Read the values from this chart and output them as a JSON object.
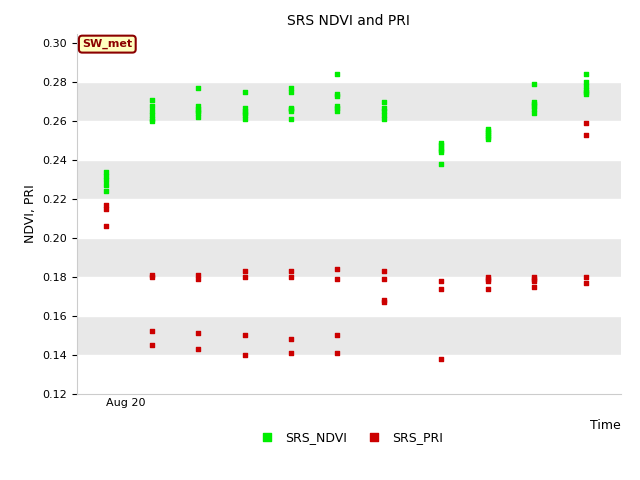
{
  "title": "SRS NDVI and PRI",
  "xlabel": "Time",
  "ylabel": "NDVI, PRI",
  "xlim_label": "Aug 20",
  "ylim": [
    0.12,
    0.305
  ],
  "yticks": [
    0.12,
    0.14,
    0.16,
    0.18,
    0.2,
    0.22,
    0.24,
    0.26,
    0.28,
    0.3
  ],
  "annotation": "SW_met",
  "annotation_color": "#8B0000",
  "annotation_bg": "#FFFFC0",
  "plot_bg": "#ffffff",
  "band_color": "#e8e8e8",
  "ndvi_color": "#00EE00",
  "pri_color": "#CC0000",
  "ndvi_x": [
    2,
    2,
    2,
    2,
    2,
    10,
    10,
    10,
    10,
    10,
    10,
    18,
    18,
    18,
    18,
    18,
    18,
    26,
    26,
    26,
    26,
    26,
    26,
    34,
    34,
    34,
    34,
    34,
    34,
    42,
    42,
    42,
    42,
    42,
    42,
    50,
    50,
    50,
    50,
    50,
    60,
    60,
    60,
    60,
    60,
    60,
    68,
    68,
    68,
    68,
    68,
    68,
    76,
    76,
    76,
    76,
    76,
    76,
    85,
    85,
    85,
    85,
    85,
    85
  ],
  "ndvi_y": [
    0.234,
    0.232,
    0.23,
    0.227,
    0.224,
    0.271,
    0.268,
    0.265,
    0.263,
    0.261,
    0.26,
    0.277,
    0.268,
    0.266,
    0.265,
    0.264,
    0.262,
    0.275,
    0.267,
    0.265,
    0.264,
    0.263,
    0.261,
    0.277,
    0.275,
    0.267,
    0.266,
    0.265,
    0.261,
    0.284,
    0.274,
    0.273,
    0.268,
    0.267,
    0.265,
    0.27,
    0.267,
    0.265,
    0.263,
    0.261,
    0.238,
    0.249,
    0.248,
    0.246,
    0.245,
    0.244,
    0.256,
    0.255,
    0.254,
    0.253,
    0.252,
    0.251,
    0.279,
    0.27,
    0.269,
    0.268,
    0.266,
    0.264,
    0.284,
    0.28,
    0.278,
    0.276,
    0.275,
    0.274
  ],
  "pri_x": [
    2,
    2,
    2,
    10,
    10,
    10,
    10,
    18,
    18,
    18,
    18,
    26,
    26,
    26,
    26,
    34,
    34,
    34,
    34,
    42,
    42,
    42,
    42,
    50,
    50,
    50,
    50,
    60,
    60,
    60,
    68,
    68,
    68,
    68,
    76,
    76,
    76,
    76,
    85,
    85,
    85,
    85
  ],
  "pri_y": [
    0.206,
    0.215,
    0.217,
    0.181,
    0.18,
    0.152,
    0.145,
    0.181,
    0.179,
    0.151,
    0.143,
    0.183,
    0.18,
    0.15,
    0.14,
    0.183,
    0.18,
    0.148,
    0.141,
    0.184,
    0.179,
    0.15,
    0.141,
    0.183,
    0.179,
    0.168,
    0.167,
    0.178,
    0.174,
    0.138,
    0.18,
    0.179,
    0.178,
    0.174,
    0.18,
    0.179,
    0.178,
    0.175,
    0.259,
    0.253,
    0.18,
    0.177
  ]
}
